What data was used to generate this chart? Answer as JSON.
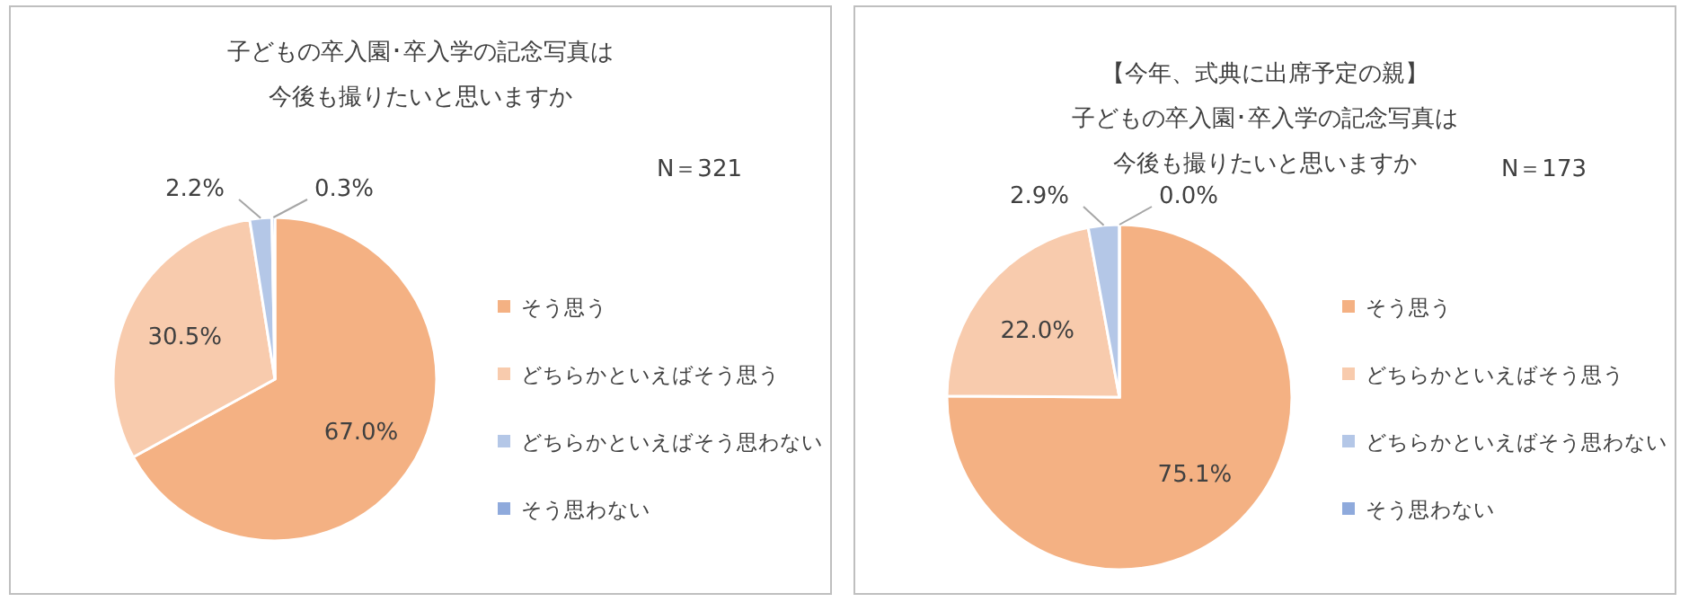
{
  "chart_data": [
    {
      "type": "pie",
      "title": "子どもの卒入園･卒入学の記念写真は今後も撮りたいと思いますか",
      "annotations": [
        "N＝321"
      ],
      "categories": [
        "そう思う",
        "どちらかといえばそう思う",
        "どちらかといえばそう思わない",
        "そう思わない"
      ],
      "values": [
        67.0,
        30.5,
        2.2,
        0.3
      ],
      "value_labels": [
        "67.0%",
        "30.5%",
        "2.2%",
        "0.3%"
      ],
      "colors": [
        "#f4b183",
        "#f8cbad",
        "#b4c7e7",
        "#8faadc"
      ],
      "legend": "right"
    },
    {
      "type": "pie",
      "title": "【今年、式典に出席予定の親】",
      "subtitle": "子どもの卒入園･卒入学の記念写真は今後も撮りたいと思いますか",
      "annotations": [
        "N＝173"
      ],
      "categories": [
        "そう思う",
        "どちらかといえばそう思う",
        "どちらかといえばそう思わない",
        "そう思わない"
      ],
      "values": [
        75.1,
        22.0,
        2.9,
        0.0
      ],
      "value_labels": [
        "75.1%",
        "22.0%",
        "2.9%",
        "0.0%"
      ],
      "colors": [
        "#f4b183",
        "#f8cbad",
        "#b4c7e7",
        "#8faadc"
      ],
      "legend": "right"
    }
  ]
}
